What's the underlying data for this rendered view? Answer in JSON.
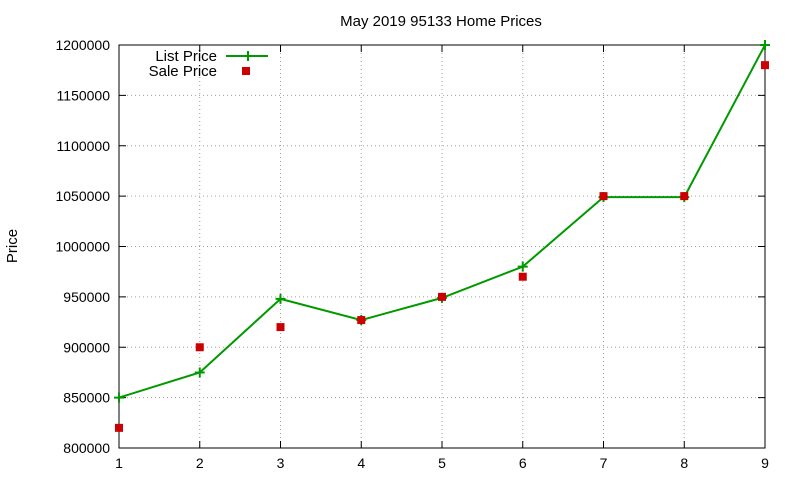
{
  "chart_data": {
    "type": "line",
    "title": "May 2019 95133 Home Prices",
    "xlabel": "",
    "ylabel": "Price",
    "x": [
      1,
      2,
      3,
      4,
      5,
      6,
      7,
      8,
      9
    ],
    "xlim": [
      1,
      9
    ],
    "ylim": [
      800000,
      1200000
    ],
    "xticks": [
      "1",
      "2",
      "3",
      "4",
      "5",
      "6",
      "7",
      "8",
      "9"
    ],
    "yticks": [
      "800000",
      "850000",
      "900000",
      "950000",
      "1000000",
      "1050000",
      "1100000",
      "1150000",
      "1200000"
    ],
    "grid": true,
    "legend_position": "top-left",
    "series": [
      {
        "name": "List Price",
        "style": "line+cross",
        "color": "#009900",
        "values": [
          850000,
          875000,
          948000,
          927000,
          949000,
          980000,
          1049000,
          1049000,
          1200000
        ]
      },
      {
        "name": "Sale Price",
        "style": "square-markers",
        "color": "#cc0000",
        "values": [
          820000,
          900000,
          920000,
          927000,
          950000,
          970000,
          1050000,
          1050000,
          1180000
        ]
      }
    ]
  }
}
